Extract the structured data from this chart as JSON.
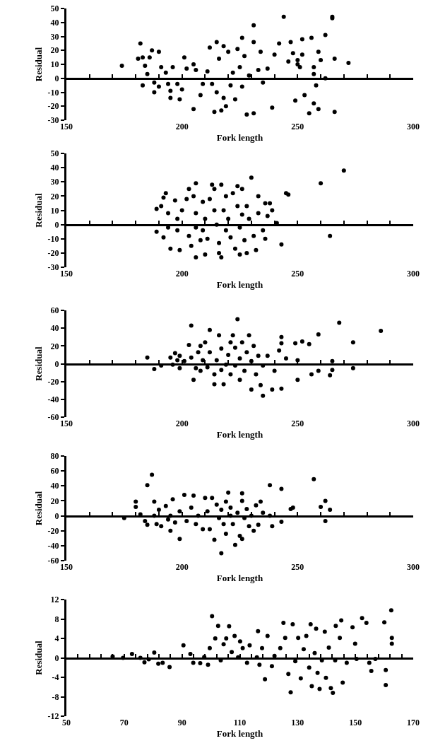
{
  "chart_data": [
    {
      "type": "scatter",
      "xlabel": "Fork length",
      "ylabel": "Residual",
      "color": "#000000",
      "marker": "circle",
      "grid": false,
      "xlim": [
        150,
        300
      ],
      "ylim": [
        -30,
        50
      ],
      "ref_lines": [
        {
          "axis": "y",
          "value": 0,
          "color": "#000000"
        }
      ],
      "xticks": [
        150,
        {
          "value": 160,
          "label": null
        },
        {
          "value": 170,
          "label": null
        },
        {
          "value": 180,
          "label": null
        },
        {
          "value": 190,
          "label": null
        },
        200,
        {
          "value": 210,
          "label": null
        },
        {
          "value": 220,
          "label": null
        },
        {
          "value": 230,
          "label": null
        },
        {
          "value": 240,
          "label": null
        },
        250,
        {
          "value": 260,
          "label": null
        },
        {
          "value": 270,
          "label": null
        },
        {
          "value": 280,
          "label": null
        },
        {
          "value": 290,
          "label": null
        },
        300
      ],
      "yticks": [
        -30,
        -20,
        -10,
        0,
        10,
        20,
        30,
        40,
        50
      ],
      "x": [
        174,
        182,
        181,
        183,
        183,
        184,
        185,
        186,
        187,
        190,
        188,
        188,
        190,
        191,
        193,
        194,
        195,
        195,
        196,
        198,
        199,
        200,
        201,
        202,
        205,
        205,
        206,
        208,
        209,
        211,
        212,
        213,
        214,
        215,
        215,
        216,
        217,
        218,
        218,
        219,
        220,
        221,
        222,
        223,
        224,
        225,
        226,
        226,
        227,
        228,
        229,
        231,
        231,
        231,
        233,
        234,
        235,
        237,
        239,
        240,
        242,
        244,
        246,
        247,
        248,
        249,
        250,
        250,
        251,
        252,
        252,
        253,
        255,
        256,
        257,
        257,
        257,
        258,
        259,
        259,
        260,
        262,
        262,
        265,
        265,
        266,
        266,
        272
      ],
      "values": [
        9,
        25,
        14,
        15,
        -5,
        9,
        3,
        15,
        20,
        19,
        -3,
        -10,
        -6,
        8,
        4,
        -4,
        -9,
        -14,
        8,
        -4,
        -15,
        -8,
        15,
        7,
        -22,
        10,
        6,
        -12,
        -4,
        5,
        22,
        -4,
        -24,
        26,
        -10,
        14,
        -23,
        -14,
        23,
        -20,
        19,
        -5,
        4,
        -15,
        21,
        8,
        29,
        -6,
        16,
        -26,
        2,
        38,
        26,
        -25,
        6,
        19,
        -3,
        7,
        -21,
        17,
        25,
        44,
        12,
        26,
        18,
        -16,
        13,
        10,
        8,
        28,
        17,
        -12,
        -25,
        29,
        8,
        3,
        -18,
        -5,
        19,
        -22,
        13,
        0,
        31,
        44,
        43,
        14,
        -24,
        11
      ]
    },
    {
      "type": "scatter",
      "xlabel": "Fork length",
      "ylabel": "Residual",
      "color": "#000000",
      "marker": "circle",
      "grid": false,
      "xlim": [
        150,
        300
      ],
      "ylim": [
        -30,
        50
      ],
      "xticks": [
        150,
        {
          "value": 160,
          "label": null
        },
        {
          "value": 170,
          "label": null
        },
        {
          "value": 180,
          "label": null
        },
        {
          "value": 190,
          "label": null
        },
        200,
        {
          "value": 210,
          "label": null
        },
        {
          "value": 220,
          "label": null
        },
        {
          "value": 230,
          "label": null
        },
        {
          "value": 240,
          "label": null
        },
        250,
        {
          "value": 260,
          "label": null
        },
        {
          "value": 270,
          "label": null
        },
        {
          "value": 280,
          "label": null
        },
        {
          "value": 290,
          "label": null
        },
        300
      ],
      "ref_lines": [
        {
          "axis": "y",
          "value": 0,
          "color": "#000000"
        }
      ],
      "yticks": [
        -30,
        -20,
        -10,
        0,
        10,
        20,
        30,
        40,
        50
      ],
      "x": [
        189,
        189,
        191,
        192,
        192,
        193,
        194,
        194,
        195,
        197,
        198,
        198,
        199,
        200,
        202,
        203,
        203,
        204,
        205,
        206,
        206,
        206,
        206,
        208,
        209,
        209,
        210,
        210,
        211,
        212,
        213,
        214,
        214,
        215,
        216,
        216,
        217,
        217,
        218,
        219,
        219,
        220,
        221,
        222,
        223,
        224,
        224,
        225,
        225,
        226,
        226,
        227,
        228,
        228,
        229,
        230,
        231,
        232,
        233,
        233,
        235,
        236,
        236,
        237,
        238,
        239,
        241,
        243,
        245,
        246,
        260,
        264,
        270
      ],
      "values": [
        11,
        -5,
        13,
        19,
        -9,
        22,
        8,
        -2,
        -17,
        17,
        4,
        -4,
        -18,
        10,
        18,
        -8,
        25,
        -15,
        20,
        29,
        8,
        -2,
        -23,
        -11,
        16,
        -4,
        -21,
        4,
        -10,
        18,
        28,
        10,
        25,
        0,
        -20,
        -13,
        -23,
        28,
        10,
        -4,
        20,
        4,
        -9,
        22,
        -17,
        27,
        13,
        -2,
        -21,
        25,
        7,
        -11,
        13,
        -20,
        4,
        33,
        -8,
        -18,
        8,
        20,
        -4,
        15,
        -10,
        6,
        15,
        10,
        1,
        -14,
        22,
        21,
        29,
        -8,
        38
      ]
    },
    {
      "type": "scatter",
      "xlabel": "Fork length",
      "ylabel": "Residual",
      "color": "#000000",
      "marker": "circle",
      "grid": false,
      "xlim": [
        150,
        300
      ],
      "ylim": [
        -60,
        60
      ],
      "xticks": [
        150,
        {
          "value": 160,
          "label": null
        },
        {
          "value": 170,
          "label": null
        },
        {
          "value": 180,
          "label": null
        },
        {
          "value": 190,
          "label": null
        },
        200,
        {
          "value": 210,
          "label": null
        },
        {
          "value": 220,
          "label": null
        },
        {
          "value": 230,
          "label": null
        },
        {
          "value": 240,
          "label": null
        },
        250,
        {
          "value": 260,
          "label": null
        },
        {
          "value": 270,
          "label": null
        },
        {
          "value": 280,
          "label": null
        },
        {
          "value": 290,
          "label": null
        },
        300
      ],
      "ref_lines": [
        {
          "axis": "y",
          "value": 0,
          "color": "#000000"
        }
      ],
      "yticks": [
        -60,
        -40,
        -20,
        0,
        20,
        40,
        60
      ],
      "x": [
        185,
        188,
        191,
        195,
        196,
        197,
        198,
        199,
        199,
        201,
        203,
        204,
        204,
        205,
        206,
        207,
        208,
        208,
        209,
        210,
        211,
        212,
        212,
        214,
        214,
        215,
        216,
        217,
        217,
        218,
        219,
        220,
        221,
        221,
        222,
        223,
        223,
        224,
        225,
        225,
        226,
        227,
        228,
        229,
        230,
        230,
        231,
        232,
        233,
        234,
        235,
        235,
        237,
        239,
        240,
        242,
        243,
        243,
        243,
        245,
        249,
        250,
        250,
        252,
        255,
        256,
        259,
        259,
        264,
        265,
        265,
        268,
        274,
        274,
        286
      ],
      "values": [
        7,
        -6,
        -2,
        7,
        -1,
        12,
        4,
        -5,
        9,
        3,
        21,
        43,
        7,
        -18,
        -5,
        13,
        -8,
        20,
        4,
        24,
        -4,
        38,
        13,
        -12,
        -23,
        4,
        32,
        -7,
        17,
        -23,
        -1,
        10,
        24,
        -12,
        32,
        -2,
        18,
        50,
        -18,
        6,
        24,
        -8,
        13,
        32,
        -29,
        3,
        20,
        -12,
        9,
        -24,
        -36,
        -2,
        9,
        -29,
        -8,
        15,
        30,
        -28,
        23,
        6,
        23,
        -18,
        4,
        25,
        22,
        -12,
        33,
        -8,
        -13,
        3,
        -7,
        46,
        24,
        -5,
        37
      ]
    },
    {
      "type": "scatter",
      "xlabel": "Fork length",
      "ylabel": "Residual",
      "color": "#000000",
      "marker": "circle",
      "grid": false,
      "xlim": [
        150,
        300
      ],
      "ylim": [
        -60,
        80
      ],
      "xticks": [
        150,
        {
          "value": 160,
          "label": null
        },
        {
          "value": 170,
          "label": null
        },
        {
          "value": 180,
          "label": null
        },
        {
          "value": 190,
          "label": null
        },
        200,
        {
          "value": 210,
          "label": null
        },
        {
          "value": 220,
          "label": null
        },
        {
          "value": 230,
          "label": null
        },
        {
          "value": 240,
          "label": null
        },
        250,
        {
          "value": 260,
          "label": null
        },
        {
          "value": 270,
          "label": null
        },
        {
          "value": 280,
          "label": null
        },
        {
          "value": 290,
          "label": null
        },
        300
      ],
      "ref_lines": [
        {
          "axis": "y",
          "value": 0,
          "color": "#000000"
        }
      ],
      "yticks": [
        -60,
        -40,
        -20,
        0,
        20,
        40,
        60,
        80
      ],
      "x": [
        175,
        180,
        180,
        182,
        184,
        185,
        185,
        187,
        188,
        188,
        189,
        190,
        191,
        193,
        194,
        195,
        195,
        196,
        197,
        199,
        199,
        201,
        202,
        204,
        205,
        206,
        207,
        209,
        210,
        211,
        212,
        213,
        214,
        215,
        216,
        217,
        217,
        218,
        219,
        219,
        220,
        221,
        221,
        222,
        223,
        224,
        225,
        226,
        226,
        226,
        227,
        228,
        229,
        230,
        231,
        232,
        233,
        234,
        235,
        238,
        238,
        239,
        243,
        243,
        247,
        248,
        257,
        260,
        262,
        262,
        264
      ],
      "values": [
        -3,
        12,
        19,
        2,
        -7,
        41,
        -12,
        55,
        0,
        19,
        -11,
        8,
        -14,
        13,
        -5,
        -20,
        0,
        22,
        -9,
        -31,
        6,
        28,
        -7,
        11,
        27,
        -11,
        0,
        -18,
        24,
        6,
        -18,
        24,
        -32,
        15,
        -3,
        8,
        -50,
        -11,
        -24,
        19,
        31,
        0,
        11,
        -11,
        -39,
        4,
        -27,
        20,
        30,
        -31,
        -3,
        9,
        -14,
        0,
        -20,
        14,
        -12,
        19,
        4,
        0,
        41,
        -14,
        36,
        -8,
        9,
        11,
        49,
        12,
        20,
        -7,
        8
      ]
    },
    {
      "type": "scatter",
      "xlabel": "Fork length",
      "ylabel": "Residual",
      "color": "#000000",
      "marker": "circle",
      "grid": false,
      "xlim": [
        50,
        170
      ],
      "ylim": [
        -12,
        12
      ],
      "xticks": [
        50,
        {
          "value": 54,
          "label": null
        },
        {
          "value": 58,
          "label": null
        },
        {
          "value": 62,
          "label": null
        },
        {
          "value": 66,
          "label": null
        },
        70,
        {
          "value": 74,
          "label": null
        },
        {
          "value": 78,
          "label": null
        },
        {
          "value": 82,
          "label": null
        },
        {
          "value": 86,
          "label": null
        },
        90,
        {
          "value": 94,
          "label": null
        },
        {
          "value": 98,
          "label": null
        },
        {
          "value": 102,
          "label": null
        },
        {
          "value": 106,
          "label": null
        },
        110,
        {
          "value": 114,
          "label": null
        },
        {
          "value": 118,
          "label": null
        },
        {
          "value": 122,
          "label": null
        },
        {
          "value": 126,
          "label": null
        },
        130,
        {
          "value": 134,
          "label": null
        },
        {
          "value": 138,
          "label": null
        },
        {
          "value": 142,
          "label": null
        },
        {
          "value": 146,
          "label": null
        },
        150,
        {
          "value": 154,
          "label": null
        },
        {
          "value": 158,
          "label": null
        },
        {
          "value": 162,
          "label": null
        },
        {
          "value": 166,
          "label": null
        },
        170
      ],
      "ref_lines": [
        {
          "axis": "y",
          "value": 0,
          "color": "#000000"
        }
      ],
      "yticks": [
        -12,
        -8,
        -4,
        0,
        4,
        8,
        12
      ],
      "x": [
        66,
        69.6,
        72.7,
        75.6,
        77,
        78.5,
        80.4,
        81.8,
        83.3,
        85.7,
        90.5,
        92.9,
        93.9,
        96.3,
        97.7,
        99,
        99.6,
        100.4,
        101.5,
        102.5,
        103.4,
        104.4,
        105.3,
        106.3,
        107.2,
        108.2,
        109.4,
        110.1,
        111,
        112.5,
        113.4,
        115.9,
        116.3,
        116.8,
        117.7,
        118.7,
        119.6,
        121.1,
        122,
        124,
        125.1,
        125.7,
        126.8,
        127.6,
        128.3,
        129.2,
        130.2,
        131.1,
        132.1,
        133,
        134,
        134.5,
        134.9,
        135.9,
        136.4,
        136.9,
        137.6,
        138.4,
        139.4,
        139.8,
        140.8,
        141.5,
        142.2,
        143,
        143.2,
        144.6,
        145.1,
        145.6,
        147,
        149,
        149.9,
        150.4,
        152.3,
        153.8,
        154.8,
        155.5,
        156.9,
        160,
        160.5,
        160.5,
        162.4,
        162.6,
        162.6
      ],
      "values": [
        0.3,
        0,
        0.8,
        0,
        -0.9,
        -0.3,
        1.1,
        -1.2,
        -1,
        -1.9,
        2.6,
        0.8,
        -1,
        -1.1,
        0.2,
        -1.4,
        2,
        8.6,
        4,
        6.6,
        -0.5,
        2.8,
        4,
        6.5,
        1.2,
        4.5,
        0.1,
        3.4,
        2,
        -1,
        2.6,
        0.1,
        5.5,
        -1.4,
        2,
        -4.4,
        4.5,
        -1.7,
        0.4,
        2,
        7.2,
        4.1,
        -3.3,
        -7.1,
        6.9,
        -0.7,
        4.1,
        -4.2,
        1.8,
        4.5,
        -2,
        6.9,
        -5.8,
        1,
        6,
        -3.1,
        -6.4,
        -0.5,
        5.4,
        -4.1,
        2.1,
        -6.2,
        -7.2,
        -0.5,
        6.6,
        4.1,
        7.7,
        -5.1,
        -1,
        6.3,
        2.9,
        -0.2,
        8.2,
        7.2,
        -1,
        -2.7,
        -0.2,
        7.3,
        -2.5,
        -5.6,
        9.8,
        4.1,
        2.9
      ]
    }
  ]
}
